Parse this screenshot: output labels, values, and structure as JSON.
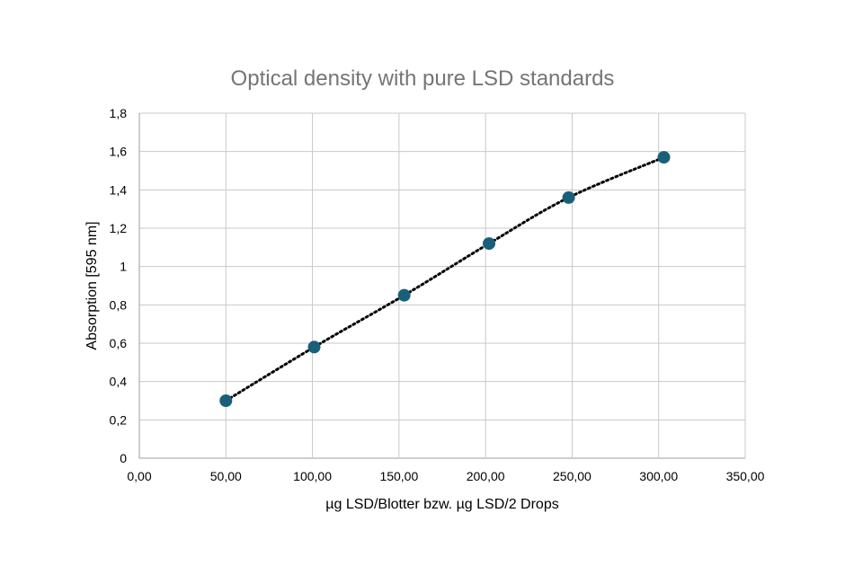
{
  "chart_data": {
    "type": "scatter",
    "title": "Optical density with pure LSD standards",
    "xlabel": "µg LSD/Blotter bzw. µg LSD/2 Drops",
    "ylabel": "Absorption [595 nm]",
    "xlim": [
      0,
      350
    ],
    "ylim": [
      0,
      1.8
    ],
    "x_ticks": [
      "0,00",
      "50,00",
      "100,00",
      "150,00",
      "200,00",
      "250,00",
      "300,00",
      "350,00"
    ],
    "y_ticks": [
      "0",
      "0,2",
      "0,4",
      "0,6",
      "0,8",
      "1",
      "1,2",
      "1,4",
      "1,6",
      "1,8"
    ],
    "grid": true,
    "legend": "none",
    "trendline": "dotted polynomial",
    "series": [
      {
        "x": [
          50.0,
          101.0,
          153.0,
          202.0,
          248.0,
          303.0
        ],
        "y": [
          0.3,
          0.58,
          0.85,
          1.12,
          1.36,
          1.57
        ]
      }
    ],
    "colors": {
      "marker": "#1a5f7a",
      "trendline": "#000000",
      "grid": "#c8c8c8",
      "title": "#757575"
    }
  }
}
